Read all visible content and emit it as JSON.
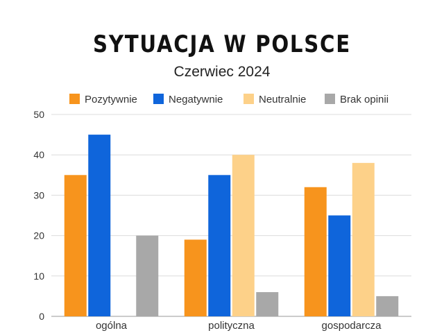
{
  "title": "SYTUACJA W POLSCE",
  "subtitle": "Czerwiec 2024",
  "chart_data": {
    "type": "bar",
    "categories": [
      "ogólna",
      "polityczna",
      "gospodarcza"
    ],
    "series": [
      {
        "name": "Pozytywnie",
        "color": "#F7941D",
        "values": [
          35,
          19,
          32
        ]
      },
      {
        "name": "Negatywnie",
        "color": "#0F65DB",
        "values": [
          45,
          35,
          25
        ]
      },
      {
        "name": "Neutralnie",
        "color": "#FDD189",
        "values": [
          0,
          40,
          38
        ]
      },
      {
        "name": "Brak opinii",
        "color": "#A8A8A8",
        "values": [
          20,
          6,
          5
        ]
      }
    ],
    "ylim": [
      0,
      50
    ],
    "yticks": [
      0,
      10,
      20,
      30,
      40,
      50
    ],
    "grid": true,
    "legend_position": "top"
  }
}
